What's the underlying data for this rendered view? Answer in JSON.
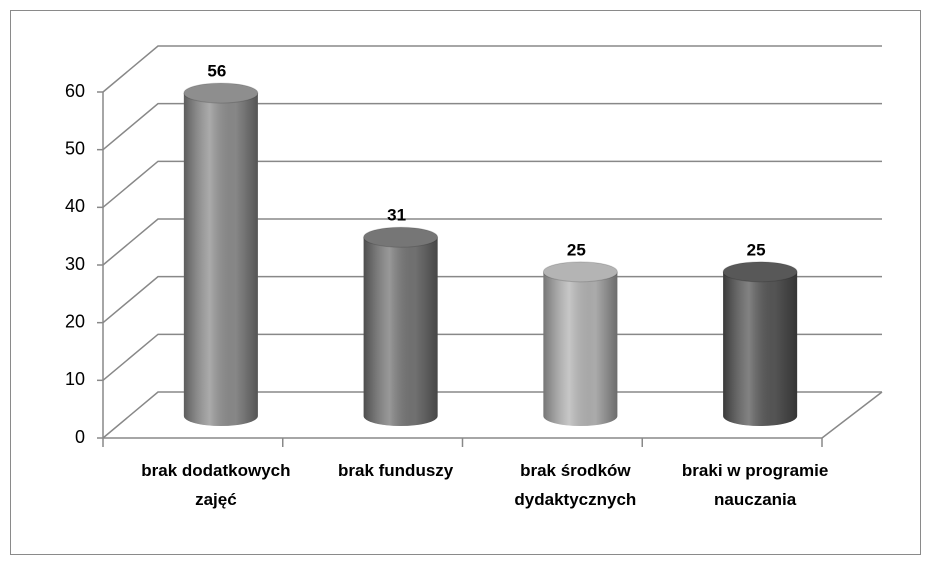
{
  "chart_data": {
    "type": "bar3d",
    "categories": [
      "brak dodatkowych zajęć",
      "brak funduszy",
      "brak środków dydaktycznych",
      "braki w programie nauczania"
    ],
    "values": [
      56,
      31,
      25,
      25
    ],
    "colors": [
      "#8e8e8e",
      "#767676",
      "#b4b4b4",
      "#585858"
    ],
    "ylim": [
      0,
      60
    ],
    "yticks": [
      0,
      10,
      20,
      30,
      40,
      50,
      60
    ],
    "grid": true
  }
}
